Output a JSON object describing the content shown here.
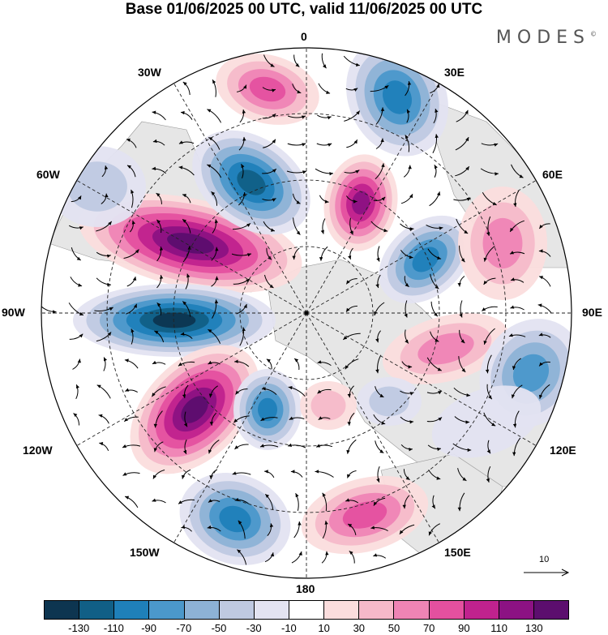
{
  "title": "Base 01/06/2025 00 UTC, valid 11/06/2025 00 UTC",
  "brand": "MODES",
  "brand_mark": "©",
  "longitude_labels": {
    "top": "0",
    "n30e": "30E",
    "n60e": "60E",
    "e90": "90E",
    "s120e": "120E",
    "s150e": "150E",
    "bottom": "180",
    "s150w": "150W",
    "s120w": "120W",
    "w90": "90W",
    "n60w": "60W",
    "n30w": "30W"
  },
  "vector_reference": "10",
  "colorbar": {
    "colors": [
      "#0d3550",
      "#115f86",
      "#1f80b9",
      "#4b98cb",
      "#8db2d6",
      "#bfc9e1",
      "#e3e3f1",
      "#ffffff",
      "#fbdddd",
      "#f6b9c9",
      "#ef84b5",
      "#e4509f",
      "#c0228e",
      "#8c1283",
      "#5c0e6e"
    ],
    "tick_labels": [
      "-130",
      "-110",
      "-90",
      "-70",
      "-50",
      "-30",
      "-10",
      "10",
      "30",
      "50",
      "70",
      "90",
      "110",
      "130"
    ]
  },
  "icons": {
    "map": "polar-stereographic-map",
    "arrow": "reference-arrow-icon"
  }
}
